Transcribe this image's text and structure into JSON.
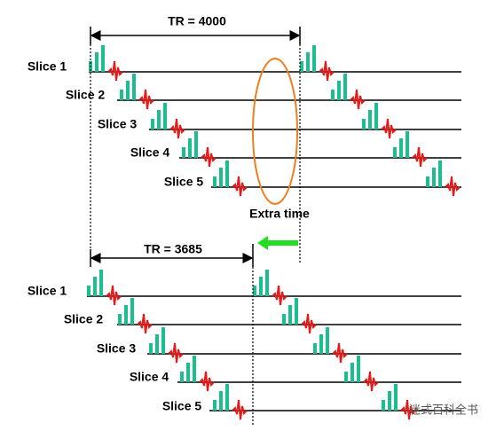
{
  "top": {
    "tr_label": "TR = 4000",
    "slices": [
      "Slice 1",
      "Slice 2",
      "Slice 3",
      "Slice 4",
      "Slice 5"
    ]
  },
  "extra_label": "Extra time",
  "bottom": {
    "tr_label": "TR = 3685",
    "slices": [
      "Slice 1",
      "Slice 2",
      "Slice 3",
      "Slice 4",
      "Slice 5"
    ]
  },
  "watermark": "迷式百科全书"
}
